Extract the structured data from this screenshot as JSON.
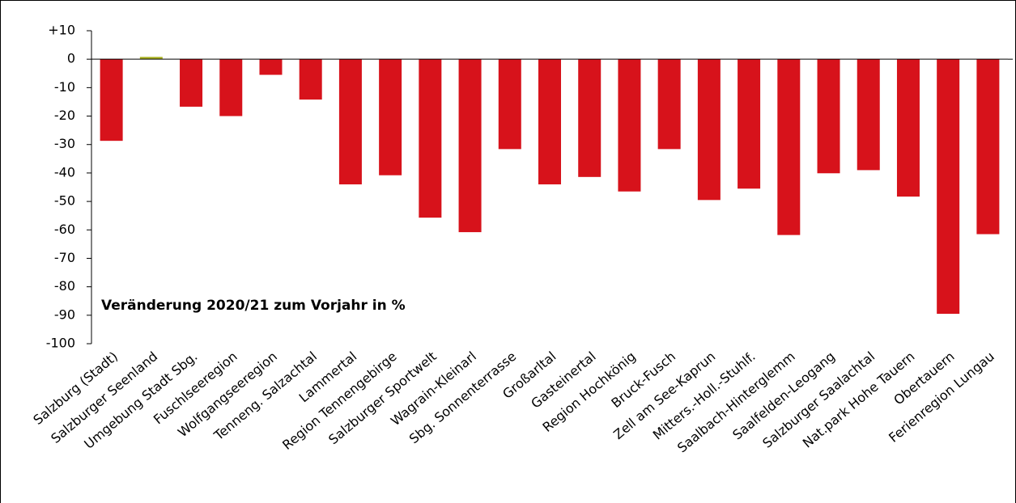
{
  "chart_data": {
    "type": "bar",
    "annotation": "Veränderung 2020/21 zum Vorjahr in %",
    "categories": [
      "Salzburg (Stadt)",
      "Salzburger Seenland",
      "Umgebung Stadt Sbg.",
      "Fuschlseeregion",
      "Wolfgangseeregion",
      "Tenneng. Salzachtal",
      "Lammertal",
      "Region Tennengebirge",
      "Salzburger Sportwelt",
      "Wagrain-Kleinarl",
      "Sbg. Sonnenterrasse",
      "Großarltal",
      "Gasteinertal",
      "Region Hochkönig",
      "Bruck-Fusch",
      "Zell am See-Kaprun",
      "Mitters.-Holl.-Stuhlf.",
      "Saalbach-Hinterglemm",
      "Saalfelden-Leogang",
      "Salzburger Saalachtal",
      "Nat.park Hohe Tauern",
      "Obertauern",
      "Ferienregion Lungau"
    ],
    "values": [
      -28.7,
      0.8,
      -16.7,
      -20,
      -5.5,
      -14.2,
      -44,
      -40.8,
      -55.7,
      -60.8,
      -31.6,
      -44,
      -41.4,
      -46.5,
      -31.6,
      -49.5,
      -45.5,
      -61.8,
      -40.1,
      -39,
      -48.3,
      -89.5,
      -61.5
    ],
    "colors": [
      "#d7121b",
      "#a9b11e",
      "#d7121b",
      "#d7121b",
      "#d7121b",
      "#d7121b",
      "#d7121b",
      "#d7121b",
      "#d7121b",
      "#d7121b",
      "#d7121b",
      "#d7121b",
      "#d7121b",
      "#d7121b",
      "#d7121b",
      "#d7121b",
      "#d7121b",
      "#d7121b",
      "#d7121b",
      "#d7121b",
      "#d7121b",
      "#d7121b",
      "#d7121b"
    ],
    "ylim": [
      -100,
      10
    ],
    "yticks": [
      {
        "value": 10,
        "label": "+10"
      },
      0,
      -10,
      -20,
      -30,
      -40,
      -50,
      -60,
      -70,
      -80,
      -90,
      -100
    ],
    "grid": false
  }
}
